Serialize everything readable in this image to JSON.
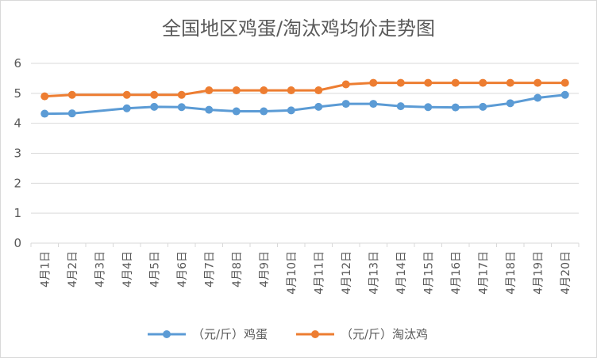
{
  "chart_data": {
    "type": "line",
    "title": "全国地区鸡蛋/淘汰鸡均价走势图",
    "xlabel": "",
    "ylabel": "",
    "ylim": [
      0,
      6
    ],
    "y_ticks": [
      "0",
      "1",
      "2",
      "3",
      "4",
      "5",
      "6"
    ],
    "grid": true,
    "legend_position": "bottom",
    "categories": [
      "4月1日",
      "4月2日",
      "4月3日",
      "4月4日",
      "4月5日",
      "4月6日",
      "4月7日",
      "4月8日",
      "4月9日",
      "4月10日",
      "4月11日",
      "4月12日",
      "4月13日",
      "4月14日",
      "4月15日",
      "4月16日",
      "4月17日",
      "4月18日",
      "4月19日",
      "4月20日"
    ],
    "series": [
      {
        "name": "（元/斤）鸡蛋",
        "color": "#5B9BD5",
        "values": [
          4.32,
          4.33,
          null,
          4.5,
          4.55,
          4.54,
          4.45,
          4.4,
          4.4,
          4.43,
          4.55,
          4.65,
          4.65,
          4.57,
          4.54,
          4.53,
          4.55,
          4.67,
          4.85,
          4.95
        ]
      },
      {
        "name": "（元/斤）淘汰鸡",
        "color": "#ED7D31",
        "values": [
          4.9,
          4.95,
          null,
          4.95,
          4.95,
          4.95,
          5.1,
          5.1,
          5.1,
          5.1,
          5.1,
          5.3,
          5.35,
          5.35,
          5.35,
          5.35,
          5.35,
          5.35,
          5.35,
          5.35
        ]
      }
    ]
  }
}
